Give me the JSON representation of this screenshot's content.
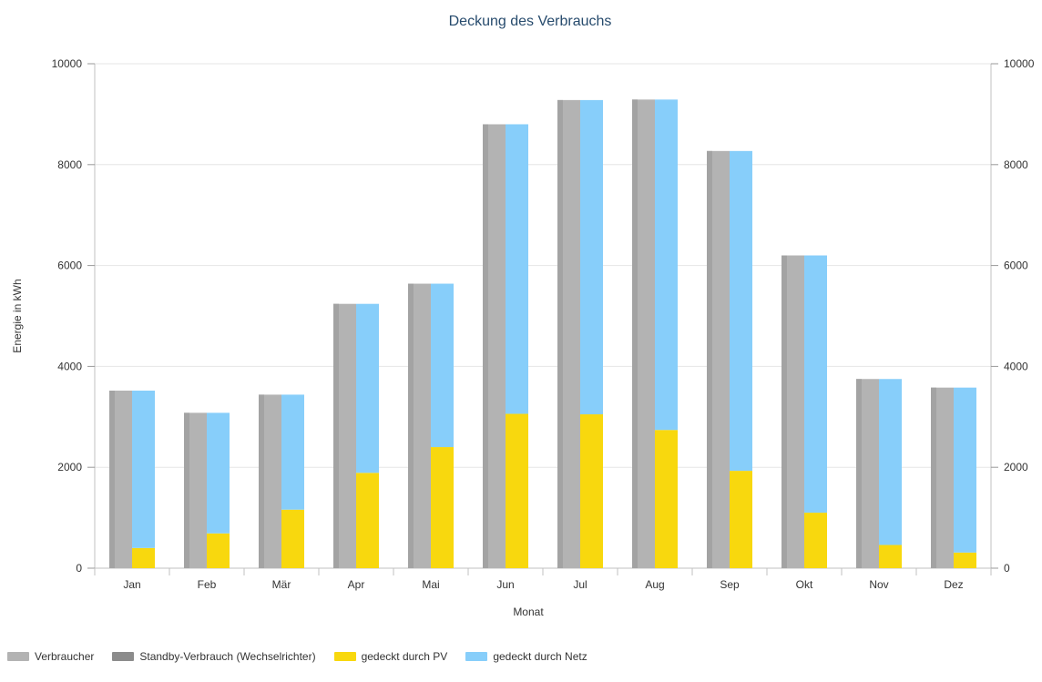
{
  "chart_data": {
    "type": "bar",
    "title": "Deckung des Verbrauchs",
    "xlabel": "Monat",
    "ylabel": "Energie in kWh",
    "ylim": [
      0,
      10000
    ],
    "yticks": [
      "0",
      "2000",
      "4000",
      "6000",
      "8000",
      "10000"
    ],
    "y2ticks": [
      "0",
      "2000",
      "4000",
      "6000",
      "8000",
      "10000"
    ],
    "grid": true,
    "legend_position": "bottom-left",
    "categories": [
      "Jan",
      "Feb",
      "Mär",
      "Apr",
      "Mai",
      "Jun",
      "Jul",
      "Aug",
      "Sep",
      "Okt",
      "Nov",
      "Dez"
    ],
    "series": [
      {
        "name": "Verbraucher",
        "color": "#b3b3b3",
        "stack": "verbrauch",
        "values": [
          3520,
          3080,
          3440,
          5240,
          5640,
          8800,
          9280,
          9290,
          8270,
          6200,
          3750,
          3580
        ]
      },
      {
        "name": "Standby-Verbrauch (Wechselrichter)",
        "color": "#8c8c8c",
        "stack": "verbrauch",
        "values": [
          0,
          0,
          0,
          0,
          0,
          0,
          0,
          0,
          0,
          0,
          0,
          0
        ]
      },
      {
        "name": "gedeckt durch PV",
        "color": "#f8d80e",
        "stack": "deckung",
        "values": [
          400,
          690,
          1160,
          1890,
          2400,
          3060,
          3050,
          2740,
          1930,
          1100,
          460,
          310
        ]
      },
      {
        "name": "gedeckt durch Netz",
        "color": "#87cefa",
        "stack": "deckung",
        "values": [
          3120,
          2390,
          2280,
          3350,
          3240,
          5740,
          6230,
          6550,
          6340,
          5100,
          3290,
          3270
        ]
      }
    ]
  }
}
